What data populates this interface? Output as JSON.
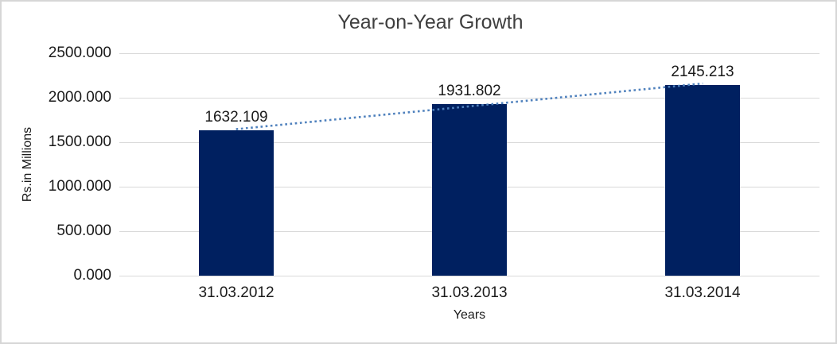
{
  "chart_data": {
    "type": "bar",
    "title": "Year-on-Year Growth",
    "categories": [
      "31.03.2012",
      "31.03.2013",
      "31.03.2014"
    ],
    "values": [
      1632.109,
      1931.802,
      2145.213
    ],
    "data_labels": [
      "1632.109",
      "1931.802",
      "2145.213"
    ],
    "xlabel": "Years",
    "ylabel": "Rs.in Millions",
    "ylim": [
      0,
      2500
    ],
    "ytick_step": 500,
    "ytick_labels": [
      "0.000",
      "500.000",
      "1000.000",
      "1500.000",
      "2000.000",
      "2500.000"
    ],
    "grid": true,
    "legend": false,
    "trendline": {
      "type": "linear",
      "style": "dotted",
      "color": "#4f81bd"
    },
    "colors": {
      "bar": "#002060",
      "gridline": "#d9d9d9",
      "frame_border": "#d6d6d6",
      "background": "#ffffff",
      "text": "#1a1a1a",
      "title_text": "#3f3f3f"
    }
  }
}
